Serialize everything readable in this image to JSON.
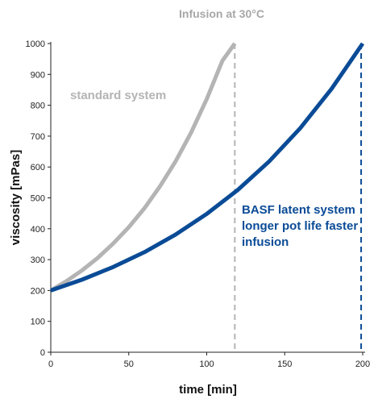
{
  "chart_data": {
    "type": "line",
    "title": "Infusion at 30°C",
    "xlabel": "time [min]",
    "ylabel": "viscosity [mPas]",
    "xlim": [
      0,
      200
    ],
    "ylim": [
      0,
      1000
    ],
    "xticks": [
      0,
      50,
      100,
      150,
      200
    ],
    "yticks": [
      0,
      100,
      200,
      300,
      400,
      500,
      600,
      700,
      800,
      900,
      1000
    ],
    "grid": false,
    "series": [
      {
        "name": "standard system",
        "color": "#b4b4b4",
        "x": [
          0,
          10,
          20,
          30,
          40,
          50,
          60,
          70,
          80,
          90,
          100,
          110,
          118
        ],
        "y": [
          200,
          230,
          265,
          305,
          352,
          405,
          466,
          537,
          618,
          712,
          820,
          944,
          1000
        ],
        "end_marker_x": 118
      },
      {
        "name": "BASF latent system longer pot life faster infusion",
        "color": "#0a4b96",
        "x": [
          0,
          20,
          40,
          60,
          80,
          100,
          120,
          140,
          160,
          180,
          200
        ],
        "y": [
          200,
          235,
          276,
          324,
          381,
          448,
          526,
          618,
          726,
          853,
          1000
        ],
        "end_marker_x": 199
      }
    ],
    "annotations": [
      {
        "text": "standard system",
        "color": "#b4b4b4"
      },
      {
        "lines": [
          "BASF latent system",
          "longer pot life faster",
          "infusion"
        ],
        "color": "#0a4b96"
      }
    ]
  }
}
